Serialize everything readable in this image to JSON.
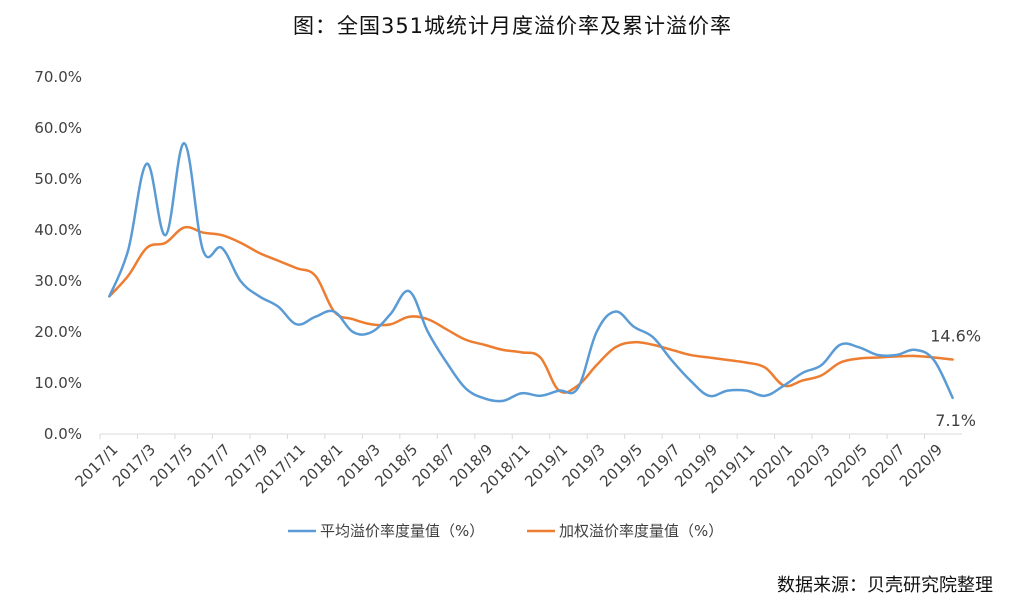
{
  "title": "图：全国351城统计月度溢价率及累计溢价率",
  "source_note": "数据来源：贝壳研究院整理",
  "colors": {
    "series1": "#5b9bd5",
    "series2": "#ed7d31",
    "axis": "#d9d9d9",
    "text": "#404040"
  },
  "chart_data": {
    "type": "line",
    "title": "图：全国351城统计月度溢价率及累计溢价率",
    "xlabel": "",
    "ylabel": "",
    "ylim": [
      0,
      70
    ],
    "y_ticks": [
      "0.0%",
      "10.0%",
      "20.0%",
      "30.0%",
      "40.0%",
      "50.0%",
      "60.0%",
      "70.0%"
    ],
    "grid": false,
    "legend_position": "bottom",
    "x": [
      "2017/1",
      "2017/2",
      "2017/3",
      "2017/4",
      "2017/5",
      "2017/6",
      "2017/7",
      "2017/8",
      "2017/9",
      "2017/10",
      "2017/11",
      "2017/12",
      "2018/1",
      "2018/2",
      "2018/3",
      "2018/4",
      "2018/5",
      "2018/6",
      "2018/7",
      "2018/8",
      "2018/9",
      "2018/10",
      "2018/11",
      "2018/12",
      "2019/1",
      "2019/2",
      "2019/3",
      "2019/4",
      "2019/5",
      "2019/6",
      "2019/7",
      "2019/8",
      "2019/9",
      "2019/10",
      "2019/11",
      "2019/12",
      "2020/1",
      "2020/2",
      "2020/3",
      "2020/4",
      "2020/5",
      "2020/6",
      "2020/7",
      "2020/8",
      "2020/9",
      "2020/10"
    ],
    "x_tick_labels": [
      "2017/1",
      "2017/3",
      "2017/5",
      "2017/7",
      "2017/9",
      "2017/11",
      "2018/1",
      "2018/3",
      "2018/5",
      "2018/7",
      "2018/9",
      "2018/11",
      "2019/1",
      "2019/3",
      "2019/5",
      "2019/7",
      "2019/9",
      "2019/11",
      "2020/1",
      "2020/3",
      "2020/5",
      "2020/7",
      "2020/9"
    ],
    "series": [
      {
        "name": "平均溢价率度量值（%）",
        "values": [
          27,
          36,
          53,
          39,
          57,
          36,
          36.5,
          30,
          27,
          25,
          21.5,
          23,
          24,
          20,
          20,
          23.5,
          28,
          20,
          14,
          9,
          7,
          6.5,
          8,
          7.5,
          8.5,
          9,
          20,
          24,
          21,
          19,
          14.5,
          10.5,
          7.5,
          8.5,
          8.5,
          7.5,
          9.5,
          12,
          13.5,
          17.5,
          17,
          15.5,
          15.5,
          16.5,
          14.5,
          7.1
        ]
      },
      {
        "name": "加权溢价率度量值（%）",
        "values": [
          27,
          31,
          36.5,
          37.5,
          40.5,
          39.5,
          39,
          37.5,
          35.5,
          34,
          32.5,
          31,
          24,
          22.5,
          21.5,
          21.5,
          23,
          22.5,
          20.5,
          18.5,
          17.5,
          16.5,
          16,
          15,
          8.5,
          9.5,
          13.5,
          17,
          18,
          17.5,
          16.5,
          15.5,
          15,
          14.5,
          14,
          13,
          9.5,
          10.5,
          11.5,
          14,
          14.8,
          15,
          15.2,
          15.3,
          15,
          14.6
        ]
      }
    ],
    "data_labels": [
      {
        "series": 1,
        "x": "2020/10",
        "text": "14.6%"
      },
      {
        "series": 0,
        "x": "2020/10",
        "text": "7.1%"
      }
    ]
  }
}
